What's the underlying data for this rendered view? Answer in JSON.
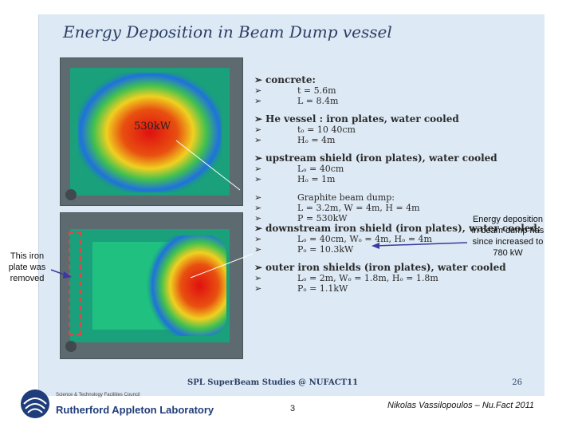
{
  "slide": {
    "title": "Energy Deposition in Beam Dump vessel",
    "heat_label": "530kW",
    "bullets": [
      {
        "text": "concrete:",
        "head": true
      },
      {
        "text": "t = 5.6m",
        "head": false
      },
      {
        "text": "L = 8.4m",
        "head": false
      },
      {
        "text": "He vessel : iron plates, water cooled",
        "head": true,
        "gap": true
      },
      {
        "text": "tₒ = 10 40cm",
        "head": false
      },
      {
        "text": "Hₒ = 4m",
        "head": false
      },
      {
        "text": "upstream shield (iron plates), water cooled",
        "head": true,
        "gap": true
      },
      {
        "text": "Lₒ = 40cm",
        "head": false
      },
      {
        "text": "Hₒ = 1m",
        "head": false
      },
      {
        "text": "Graphite beam dump:",
        "head": false,
        "gap": true
      },
      {
        "text": "L = 3.2m, W = 4m, H = 4m",
        "head": false
      },
      {
        "text": "P = 530kW",
        "head": false
      },
      {
        "text": "downstream iron shield (iron plates), water cooled:",
        "head": true
      },
      {
        "text": "Lₒ = 40cm, Wₒ = 4m, Hₒ = 4m",
        "head": false
      },
      {
        "text": "Pₒ = 10.3kW",
        "head": false
      },
      {
        "text": "outer iron shields (iron plates), water cooled",
        "head": true,
        "gap": true
      },
      {
        "text": "Lₒ = 2m, Wₒ = 1.8m, Hₒ = 1.8m",
        "head": false
      },
      {
        "text": "Pₒ = 1.1kW",
        "head": false
      }
    ],
    "footer": "SPL SuperBeam Studies @ NUFACT11",
    "page": "26"
  },
  "callouts": {
    "energy": [
      "Energy deposition",
      "in beam dump has",
      "since increased to",
      "780 kW"
    ],
    "plate": [
      "This iron",
      "plate was",
      "removed"
    ]
  },
  "logo": {
    "line1": "Science & Technology Facilities Council",
    "line2": "Rutherford Appleton Laboratory"
  },
  "page_number": "3",
  "author": "Nikolas Vassilopoulos – Nu.Fact 2011",
  "colors": {
    "title": "#2c3f66",
    "vessel_green": "#1aa07a",
    "concrete_gray": "#5d6a70",
    "dashed_marker": "#d84a4a"
  }
}
